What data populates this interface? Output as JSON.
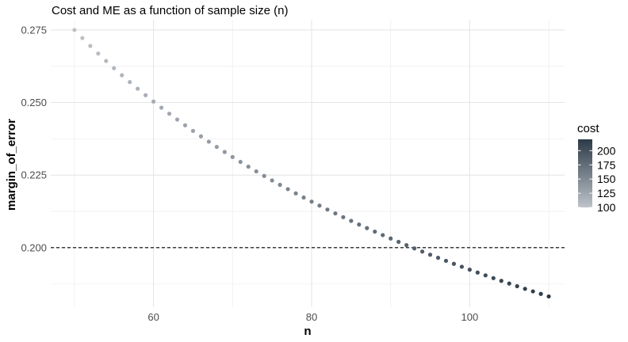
{
  "chart_data": {
    "type": "scatter",
    "title": "Cost and ME as a function of sample size (n)",
    "xlabel": "n",
    "ylabel": "margin_of_error",
    "xlim": [
      47,
      112
    ],
    "ylim": [
      0.1795,
      0.2785
    ],
    "x_ticks": [
      60,
      80,
      100
    ],
    "y_ticks": [
      0.2,
      0.225,
      0.25,
      0.275
    ],
    "y_tick_labels": [
      "0.200",
      "0.225",
      "0.250",
      "0.275"
    ],
    "x_minor_ticks": [
      50,
      70,
      90,
      110
    ],
    "y_minor_ticks": [
      0.1875,
      0.2125,
      0.2375,
      0.2625
    ],
    "grid": true,
    "reference_line": {
      "y": 0.2,
      "style": "dashed",
      "color": "#000000"
    },
    "points": {
      "n_min": 50,
      "n_max": 110,
      "step": 1,
      "margin_of_error_at_n_min": 0.275,
      "margin_of_error_at_n_max": 0.1832
    },
    "color_scale": {
      "variable": "cost",
      "title": "cost",
      "range": [
        100,
        220
      ],
      "low_color": "#bec3c9",
      "high_color": "#2c3a48",
      "breaks": [
        100,
        125,
        150,
        175,
        200
      ],
      "break_labels": [
        "100",
        "125",
        "150",
        "175",
        "200"
      ],
      "legend_position": "right"
    }
  }
}
